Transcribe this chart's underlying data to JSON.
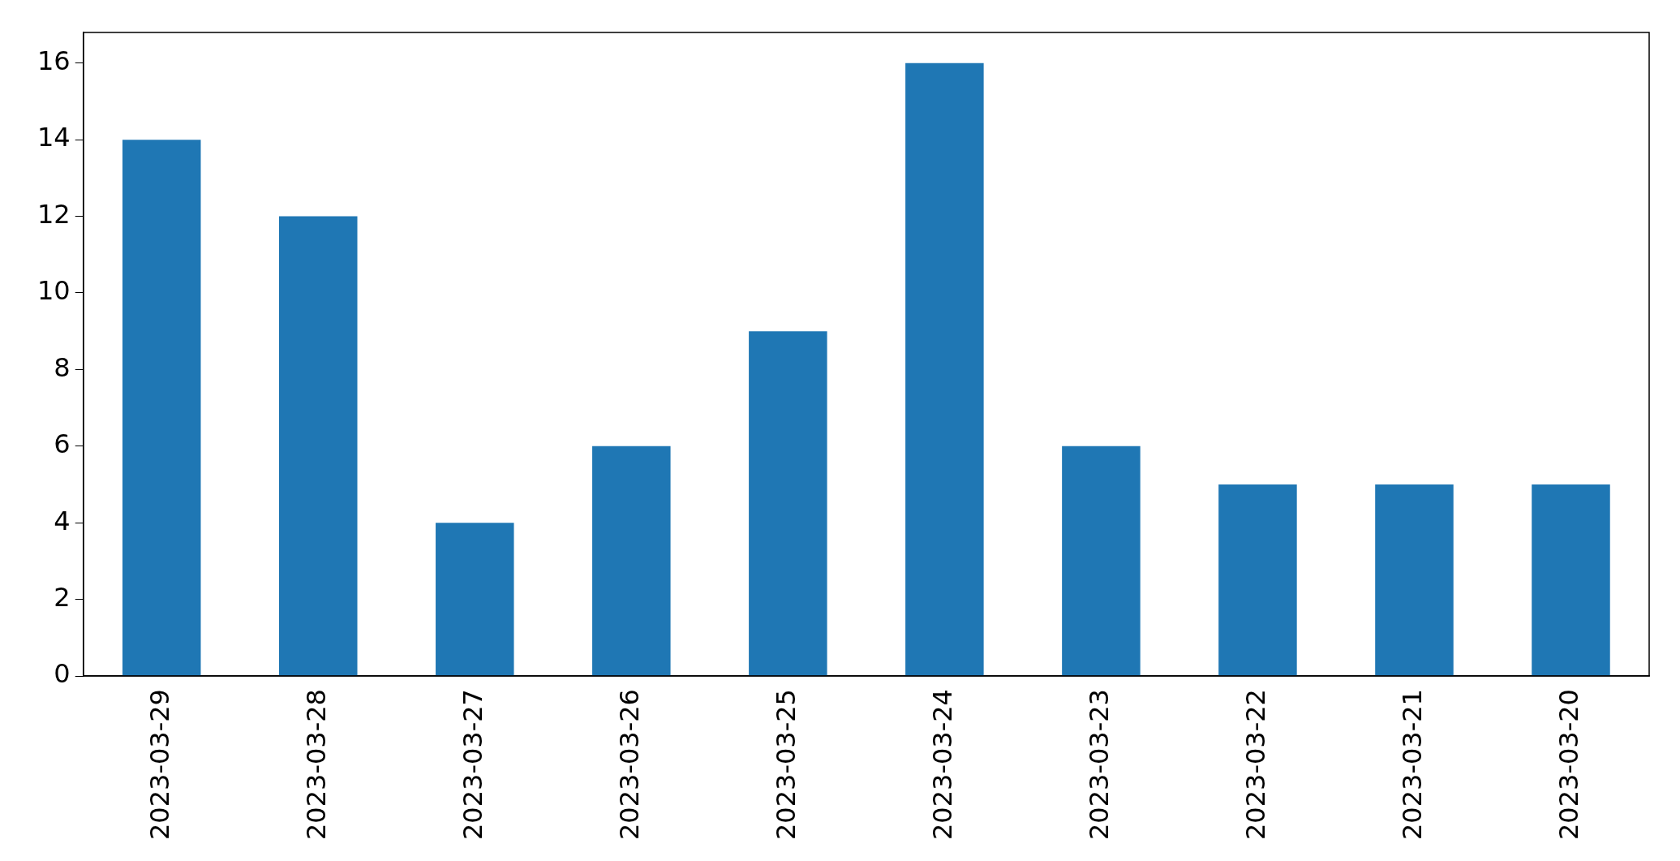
{
  "chart_data": {
    "type": "bar",
    "categories": [
      "2023-03-29",
      "2023-03-28",
      "2023-03-27",
      "2023-03-26",
      "2023-03-25",
      "2023-03-24",
      "2023-03-23",
      "2023-03-22",
      "2023-03-21",
      "2023-03-20"
    ],
    "values": [
      14,
      12,
      4,
      6,
      9,
      16,
      6,
      5,
      5,
      5
    ],
    "color": "#1f77b4",
    "ylim": [
      0,
      16.8
    ],
    "yticks": [
      0,
      2,
      4,
      6,
      8,
      10,
      12,
      14,
      16
    ],
    "grid": false,
    "legend": false
  }
}
